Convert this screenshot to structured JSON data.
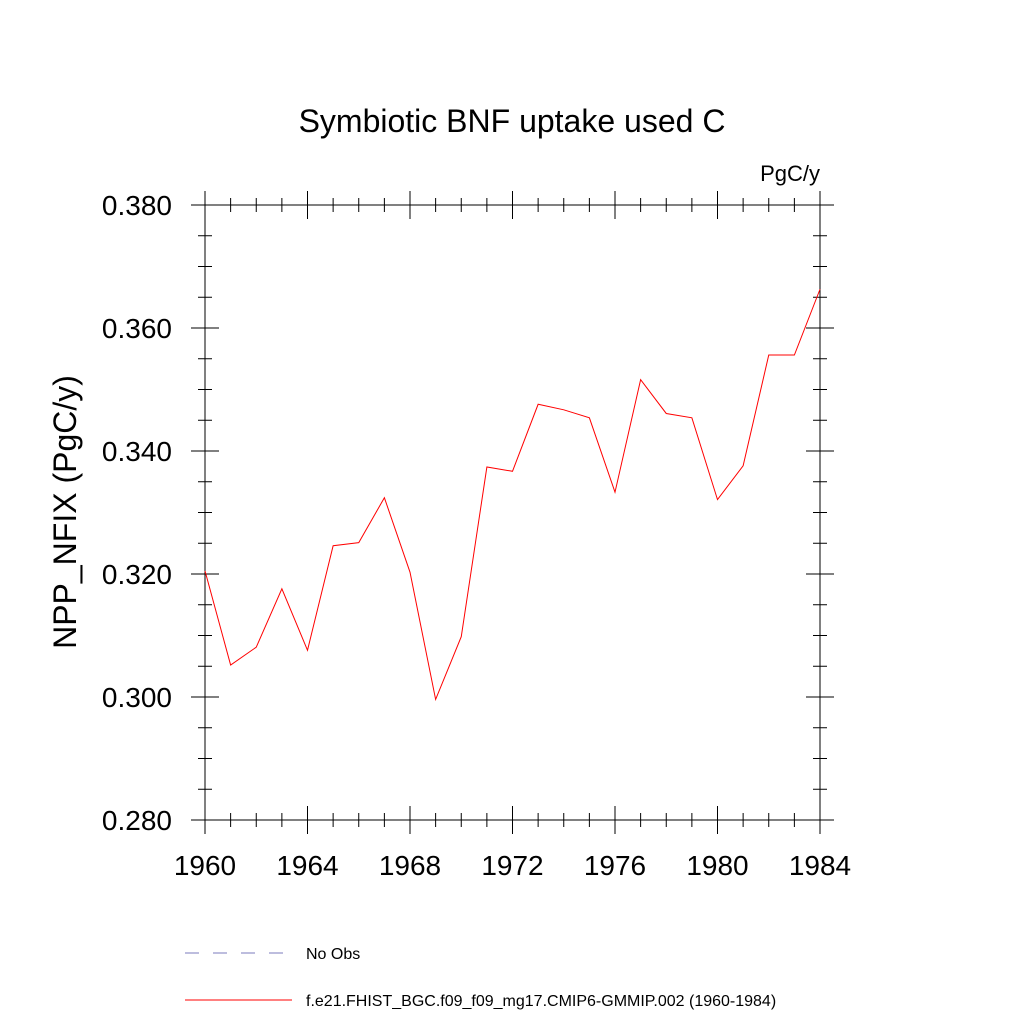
{
  "chart_data": {
    "type": "line",
    "title": "Symbiotic BNF uptake used C",
    "units_label": "PgC/y",
    "ylabel": "NPP_NFIX  (PgC/y)",
    "xlabel": "",
    "xlim": [
      1960,
      1984
    ],
    "ylim": [
      0.28,
      0.38
    ],
    "x_ticks": [
      1960,
      1964,
      1968,
      1972,
      1976,
      1980,
      1984
    ],
    "x_tick_labels": [
      "1960",
      "1964",
      "1968",
      "1972",
      "1976",
      "1980",
      "1984"
    ],
    "y_ticks": [
      0.28,
      0.3,
      0.32,
      0.34,
      0.36,
      0.38
    ],
    "y_tick_labels": [
      "0.280",
      "0.300",
      "0.320",
      "0.340",
      "0.360",
      "0.380"
    ],
    "series": [
      {
        "name": "f.e21.FHIST_BGC.f09_f09_mg17.CMIP6-GMMIP.002 (1960-1984)",
        "color": "#ff0000",
        "style": "solid",
        "x": [
          1960,
          1961,
          1962,
          1963,
          1964,
          1965,
          1966,
          1967,
          1968,
          1969,
          1970,
          1971,
          1972,
          1973,
          1974,
          1975,
          1976,
          1977,
          1978,
          1979,
          1980,
          1981,
          1982,
          1983,
          1984
        ],
        "values": [
          0.3205,
          0.3052,
          0.3081,
          0.3176,
          0.3076,
          0.3246,
          0.3251,
          0.3324,
          0.3203,
          0.2996,
          0.3098,
          0.3374,
          0.3367,
          0.3476,
          0.3467,
          0.3454,
          0.3333,
          0.3516,
          0.3461,
          0.3454,
          0.3321,
          0.3376,
          0.3556,
          0.3556,
          0.3663
        ]
      },
      {
        "name": "No Obs",
        "color": "#7b7bbe",
        "style": "dashed",
        "x": [],
        "values": []
      }
    ],
    "legend": [
      {
        "label": "No Obs",
        "color": "#7b7bbe",
        "style": "dashed"
      },
      {
        "label": "f.e21.FHIST_BGC.f09_f09_mg17.CMIP6-GMMIP.002 (1960-1984)",
        "color": "#ff0000",
        "style": "solid"
      }
    ],
    "legend_placement": "bottom"
  }
}
